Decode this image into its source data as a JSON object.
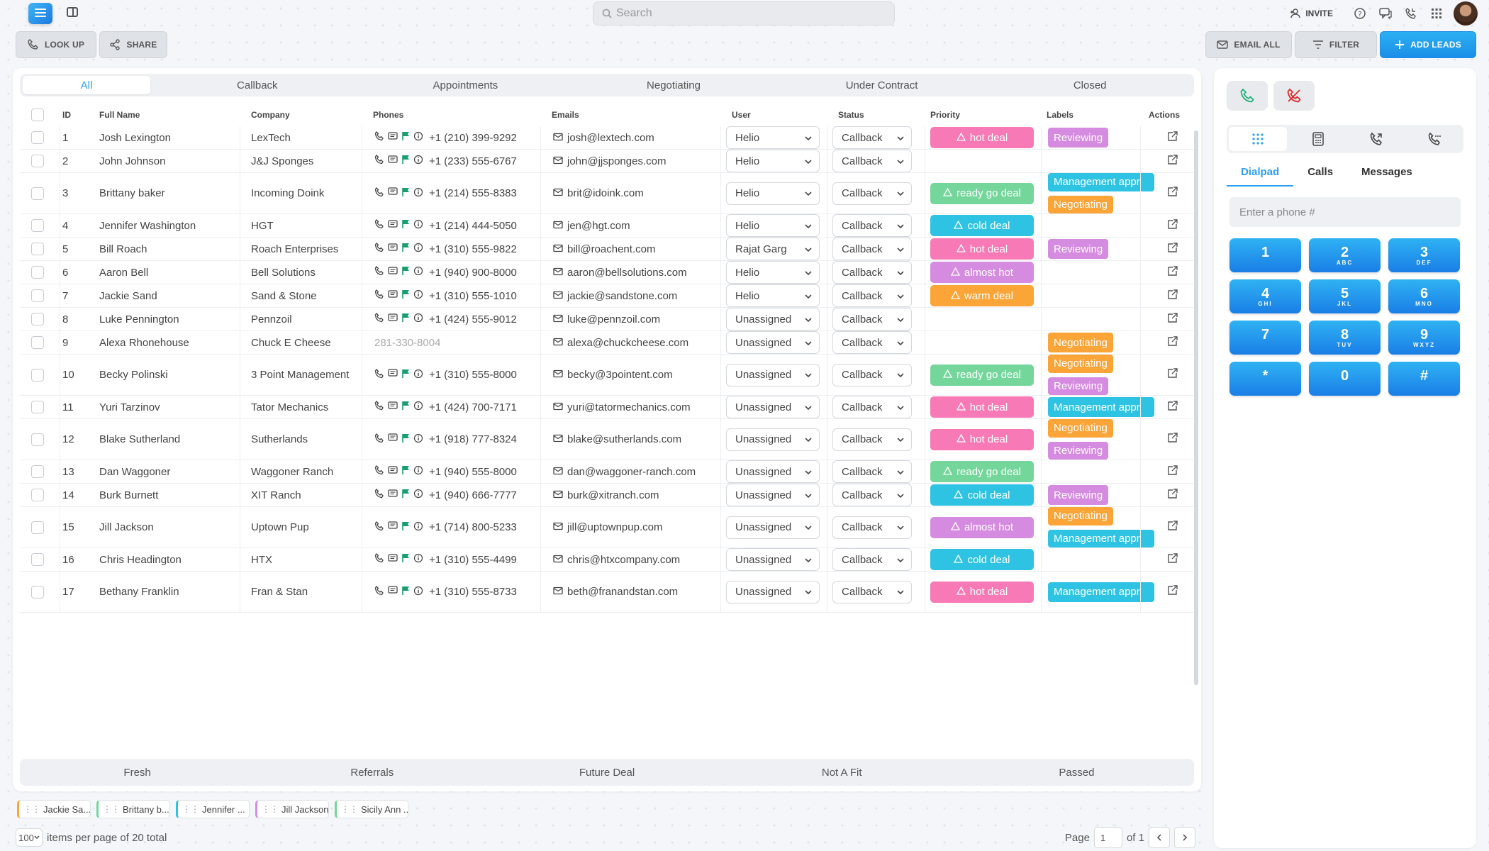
{
  "search": {
    "placeholder": "Search"
  },
  "header": {
    "invite_label": "INVITE"
  },
  "toolbar": {
    "lookup_label": "LOOK UP",
    "share_label": "SHARE",
    "email_all_label": "EMAIL ALL",
    "filter_label": "FILTER",
    "add_leads_label": "ADD LEADS"
  },
  "tabs": [
    {
      "label": "All",
      "active": true
    },
    {
      "label": "Callback"
    },
    {
      "label": "Appointments"
    },
    {
      "label": "Negotiating"
    },
    {
      "label": "Under Contract"
    },
    {
      "label": "Closed"
    }
  ],
  "table": {
    "columns": {
      "id": "ID",
      "name": "Full Name",
      "company": "Company",
      "phones": "Phones",
      "emails": "Emails",
      "user": "User",
      "status": "Status",
      "priority": "Priority",
      "labels": "Labels",
      "actions": "Actions"
    },
    "rows": [
      {
        "id": "1",
        "name": "Josh Lexington",
        "company": "LexTech",
        "phone": "+1 (210) 399-9292",
        "email": "josh@lextech.com",
        "user": "Helio",
        "status": "Callback",
        "priority": "hot deal",
        "labels": [
          "Reviewing"
        ]
      },
      {
        "id": "2",
        "name": "John Johnson",
        "company": "J&J Sponges",
        "phone": "+1 (233) 555-6767",
        "email": "john@jjsponges.com",
        "user": "Helio",
        "status": "Callback",
        "priority": "",
        "labels": []
      },
      {
        "id": "3",
        "name": "Brittany baker",
        "company": "Incoming Doink",
        "phone": "+1 (214) 555-8383",
        "email": "brit@idoink.com",
        "user": "Helio",
        "status": "Callback",
        "priority": "ready go deal",
        "labels": [
          "Management appr",
          "Negotiating"
        ]
      },
      {
        "id": "4",
        "name": "Jennifer Washington",
        "company": "HGT",
        "phone": "+1 (214) 444-5050",
        "email": "jen@hgt.com",
        "user": "Helio",
        "status": "Callback",
        "priority": "cold deal",
        "labels": []
      },
      {
        "id": "5",
        "name": "Bill Roach",
        "company": "Roach Enterprises",
        "phone": "+1 (310) 555-9822",
        "email": "bill@roachent.com",
        "user": "Rajat Garg",
        "status": "Callback",
        "priority": "hot deal",
        "labels": [
          "Reviewing"
        ]
      },
      {
        "id": "6",
        "name": "Aaron Bell",
        "company": "Bell Solutions",
        "phone": "+1 (940) 900-8000",
        "email": "aaron@bellsolutions.com",
        "user": "Helio",
        "status": "Callback",
        "priority": "almost hot",
        "labels": []
      },
      {
        "id": "7",
        "name": "Jackie Sand",
        "company": "Sand & Stone",
        "phone": "+1 (310) 555-1010",
        "email": "jackie@sandstone.com",
        "user": "Helio",
        "status": "Callback",
        "priority": "warm deal",
        "labels": []
      },
      {
        "id": "8",
        "name": "Luke Pennington",
        "company": "Pennzoil",
        "phone": "+1 (424) 555-9012",
        "email": "luke@pennzoil.com",
        "user": "Unassigned",
        "status": "Callback",
        "priority": "",
        "labels": []
      },
      {
        "id": "9",
        "name": "Alexa Rhonehouse",
        "company": "Chuck E Cheese",
        "phone": "281-330-8004",
        "phone_plain": true,
        "email": "alexa@chuckcheese.com",
        "user": "Unassigned",
        "status": "Callback",
        "priority": "",
        "labels": [
          "Negotiating"
        ]
      },
      {
        "id": "10",
        "name": "Becky Polinski",
        "company": "3 Point Management",
        "phone": "+1 (310) 555-8000",
        "email": "becky@3pointent.com",
        "user": "Unassigned",
        "status": "Callback",
        "priority": "ready go deal",
        "labels": [
          "Negotiating",
          "Reviewing"
        ]
      },
      {
        "id": "11",
        "name": "Yuri Tarzinov",
        "company": "Tator Mechanics",
        "phone": "+1 (424) 700-7171",
        "email": "yuri@tatormechanics.com",
        "user": "Unassigned",
        "status": "Callback",
        "priority": "hot deal",
        "labels": [
          "Management appr"
        ]
      },
      {
        "id": "12",
        "name": "Blake Sutherland",
        "company": "Sutherlands",
        "phone": "+1 (918) 777-8324",
        "email": "blake@sutherlands.com",
        "user": "Unassigned",
        "status": "Callback",
        "priority": "hot deal",
        "labels": [
          "Negotiating",
          "Reviewing"
        ]
      },
      {
        "id": "13",
        "name": "Dan Waggoner",
        "company": "Waggoner Ranch",
        "phone": "+1 (940) 555-8000",
        "email": "dan@waggoner-ranch.com",
        "user": "Unassigned",
        "status": "Callback",
        "priority": "ready go deal",
        "labels": []
      },
      {
        "id": "14",
        "name": "Burk Burnett",
        "company": "XIT Ranch",
        "phone": "+1 (940) 666-7777",
        "email": "burk@xitranch.com",
        "user": "Unassigned",
        "status": "Callback",
        "priority": "cold deal",
        "labels": [
          "Reviewing"
        ]
      },
      {
        "id": "15",
        "name": "Jill Jackson",
        "company": "Uptown Pup",
        "phone": "+1 (714) 800-5233",
        "email": "jill@uptownpup.com",
        "user": "Unassigned",
        "status": "Callback",
        "priority": "almost hot",
        "labels": [
          "Negotiating",
          "Management appr"
        ]
      },
      {
        "id": "16",
        "name": "Chris Headington",
        "company": "HTX",
        "phone": "+1 (310) 555-4499",
        "email": "chris@htxcompany.com",
        "user": "Unassigned",
        "status": "Callback",
        "priority": "cold deal",
        "labels": []
      },
      {
        "id": "17",
        "name": "Bethany Franklin",
        "company": "Fran & Stan",
        "phone": "+1 (310) 555-8733",
        "email": "beth@franandstan.com",
        "user": "Unassigned",
        "status": "Callback",
        "priority": "hot deal",
        "labels": [
          "Management appr"
        ]
      }
    ]
  },
  "bottom_tabs": [
    "Fresh",
    "Referrals",
    "Future Deal",
    "Not A Fit",
    "Passed"
  ],
  "chips": [
    {
      "label": "Jackie Sa...",
      "color": "#fba437"
    },
    {
      "label": "Brittany b...",
      "color": "#74d69b"
    },
    {
      "label": "Jennifer ...",
      "color": "#2ec3e3"
    },
    {
      "label": "Jill Jackson",
      "color": "#d58ce0"
    },
    {
      "label": "Sicily Ann ...",
      "color": "#74d69b"
    }
  ],
  "footer": {
    "per_page": "100",
    "per_page_text": "items per page of 20 total",
    "page_label": "Page",
    "page_value": "1",
    "of_label": "of 1"
  },
  "dialer": {
    "tabs": [
      "Dialpad",
      "Calls",
      "Messages"
    ],
    "input_placeholder": "Enter a phone #",
    "keys": [
      {
        "d": "1",
        "l": ""
      },
      {
        "d": "2",
        "l": "ABC"
      },
      {
        "d": "3",
        "l": "DEF"
      },
      {
        "d": "4",
        "l": "GHI"
      },
      {
        "d": "5",
        "l": "JKL"
      },
      {
        "d": "6",
        "l": "MNO"
      },
      {
        "d": "7",
        "l": ""
      },
      {
        "d": "8",
        "l": "TUV"
      },
      {
        "d": "9",
        "l": "WXYZ"
      },
      {
        "d": "*",
        "l": ""
      },
      {
        "d": "0",
        "l": ""
      },
      {
        "d": "#",
        "l": ""
      }
    ]
  },
  "colors": {
    "accent": "#2b9ff2",
    "hot": "#f779b5",
    "ready": "#74d69b",
    "cold": "#2ec3e3",
    "almost": "#d58ce0",
    "warm": "#fba437"
  }
}
